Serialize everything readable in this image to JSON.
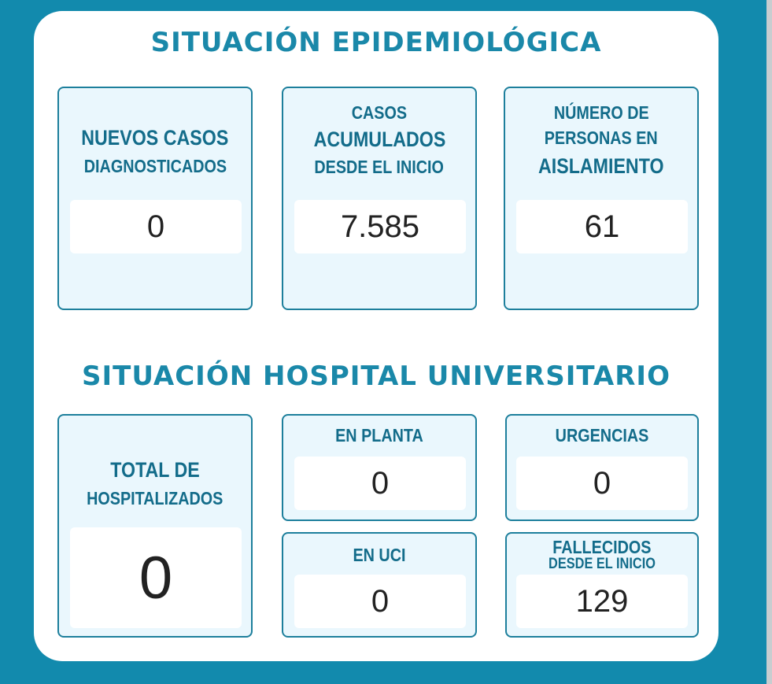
{
  "epidemiologica": {
    "title": "SITUACIÓN EPIDEMIOLÓGICA",
    "nuevos": {
      "line1": "NUEVOS CASOS",
      "line2": "DIAGNOSTICADOS",
      "value": "0"
    },
    "acumulados": {
      "line1": "CASOS",
      "line2": "ACUMULADOS",
      "line3": "DESDE EL INICIO",
      "value": "7.585"
    },
    "aislamiento": {
      "line1": "NÚMERO DE",
      "line2": "PERSONAS EN",
      "line3": "AISLAMIENTO",
      "value": "61"
    }
  },
  "hospital": {
    "title": "SITUACIÓN HOSPITAL UNIVERSITARIO",
    "total": {
      "line1": "TOTAL DE",
      "line2": "HOSPITALIZADOS",
      "value": "0"
    },
    "planta": {
      "label": "EN PLANTA",
      "value": "0"
    },
    "urgencias": {
      "label": "URGENCIAS",
      "value": "0"
    },
    "uci": {
      "label": "EN UCI",
      "value": "0"
    },
    "fallecidos": {
      "line1": "FALLECIDOS",
      "line2": "DESDE EL INICIO",
      "value": "129"
    }
  }
}
